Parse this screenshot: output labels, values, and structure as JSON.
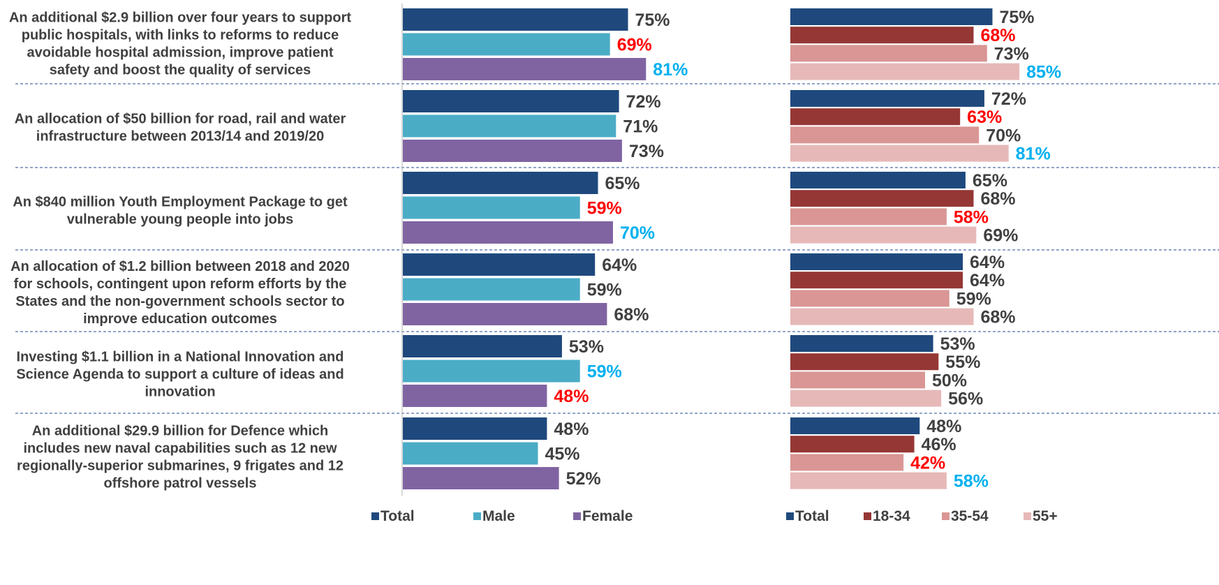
{
  "chart_data": [
    {
      "type": "bar",
      "orientation": "horizontal",
      "categories": [
        "An additional $2.9 billion over four years to support public hospitals, with links to reforms to reduce avoidable hospital admission, improve patient safety and boost the quality of services",
        "An allocation of $50 billion for road, rail and water infrastructure between 2013/14 and 2019/20",
        "An $840 million Youth Employment Package to get vulnerable young people into jobs",
        "An allocation of $1.2 billion between 2018 and 2020 for schools, contingent upon reform efforts by the States and the non-government schools sector to improve education outcomes",
        "Investing $1.1 billion in a National Innovation and Science Agenda to support a culture of ideas and innovation",
        "An additional $29.9 billion for Defence which includes new naval capabilities such as 12 new regionally-superior submarines, 9 frigates and 12 offshore patrol vessels"
      ],
      "category_lines": [
        [
          "An additional $2.9 billion over four years to support",
          "public hospitals, with links to reforms to reduce",
          "avoidable hospital admission, improve patient",
          "safety and boost the quality of services"
        ],
        [
          "An allocation of $50 billion for road, rail and water",
          "infrastructure between 2013/14 and 2019/20"
        ],
        [
          "An $840 million Youth Employment Package to get",
          "vulnerable young people into jobs"
        ],
        [
          "An allocation of $1.2 billion between 2018 and 2020",
          "for schools, contingent upon reform efforts by the",
          "States and the non-government schools sector to",
          "improve education outcomes"
        ],
        [
          "Investing $1.1 billion in a National Innovation and",
          "Science Agenda to support a culture of ideas and",
          "innovation"
        ],
        [
          "An additional $29.9 billion for Defence which",
          "includes new naval capabilities such as 12 new",
          "regionally-superior submarines, 9 frigates and 12",
          "offshore patrol vessels"
        ]
      ],
      "series": [
        {
          "name": "Total",
          "color": "#1F497D",
          "values": [
            75,
            72,
            65,
            64,
            53,
            48
          ],
          "label_colors": [
            "#404040",
            "#404040",
            "#404040",
            "#404040",
            "#404040",
            "#404040"
          ]
        },
        {
          "name": "Male",
          "color": "#4BACC6",
          "values": [
            69,
            71,
            59,
            59,
            59,
            45
          ],
          "label_colors": [
            "#FF0000",
            "#404040",
            "#FF0000",
            "#404040",
            "#00B0F0",
            "#404040"
          ]
        },
        {
          "name": "Female",
          "color": "#8064A2",
          "values": [
            81,
            73,
            70,
            68,
            48,
            52
          ],
          "label_colors": [
            "#00B0F0",
            "#404040",
            "#00B0F0",
            "#404040",
            "#FF0000",
            "#404040"
          ]
        }
      ],
      "value_suffix": "%",
      "xlim": [
        0,
        100
      ],
      "legend_position": "bottom"
    },
    {
      "type": "bar",
      "orientation": "horizontal",
      "series": [
        {
          "name": "Total",
          "color": "#1F497D",
          "values": [
            75,
            72,
            65,
            64,
            53,
            48
          ],
          "label_colors": [
            "#404040",
            "#404040",
            "#404040",
            "#404040",
            "#404040",
            "#404040"
          ]
        },
        {
          "name": "18-34",
          "color": "#953735",
          "values": [
            68,
            63,
            68,
            64,
            55,
            46
          ],
          "label_colors": [
            "#FF0000",
            "#FF0000",
            "#404040",
            "#404040",
            "#404040",
            "#404040"
          ]
        },
        {
          "name": "35-54",
          "color": "#D99694",
          "values": [
            73,
            70,
            58,
            59,
            50,
            42
          ],
          "label_colors": [
            "#404040",
            "#404040",
            "#FF0000",
            "#404040",
            "#404040",
            "#FF0000"
          ]
        },
        {
          "name": "55+",
          "color": "#E6B9B8",
          "values": [
            85,
            81,
            69,
            68,
            56,
            58
          ],
          "label_colors": [
            "#00B0F0",
            "#00B0F0",
            "#404040",
            "#404040",
            "#404040",
            "#00B0F0"
          ]
        }
      ],
      "value_suffix": "%",
      "xlim": [
        0,
        100
      ],
      "legend_position": "bottom"
    }
  ],
  "colors": {
    "text": "#404040",
    "highlight_low": "#FF0000",
    "highlight_high": "#00B0F0",
    "separator": "#4F6EA8",
    "axis": "#BFBFBF"
  }
}
